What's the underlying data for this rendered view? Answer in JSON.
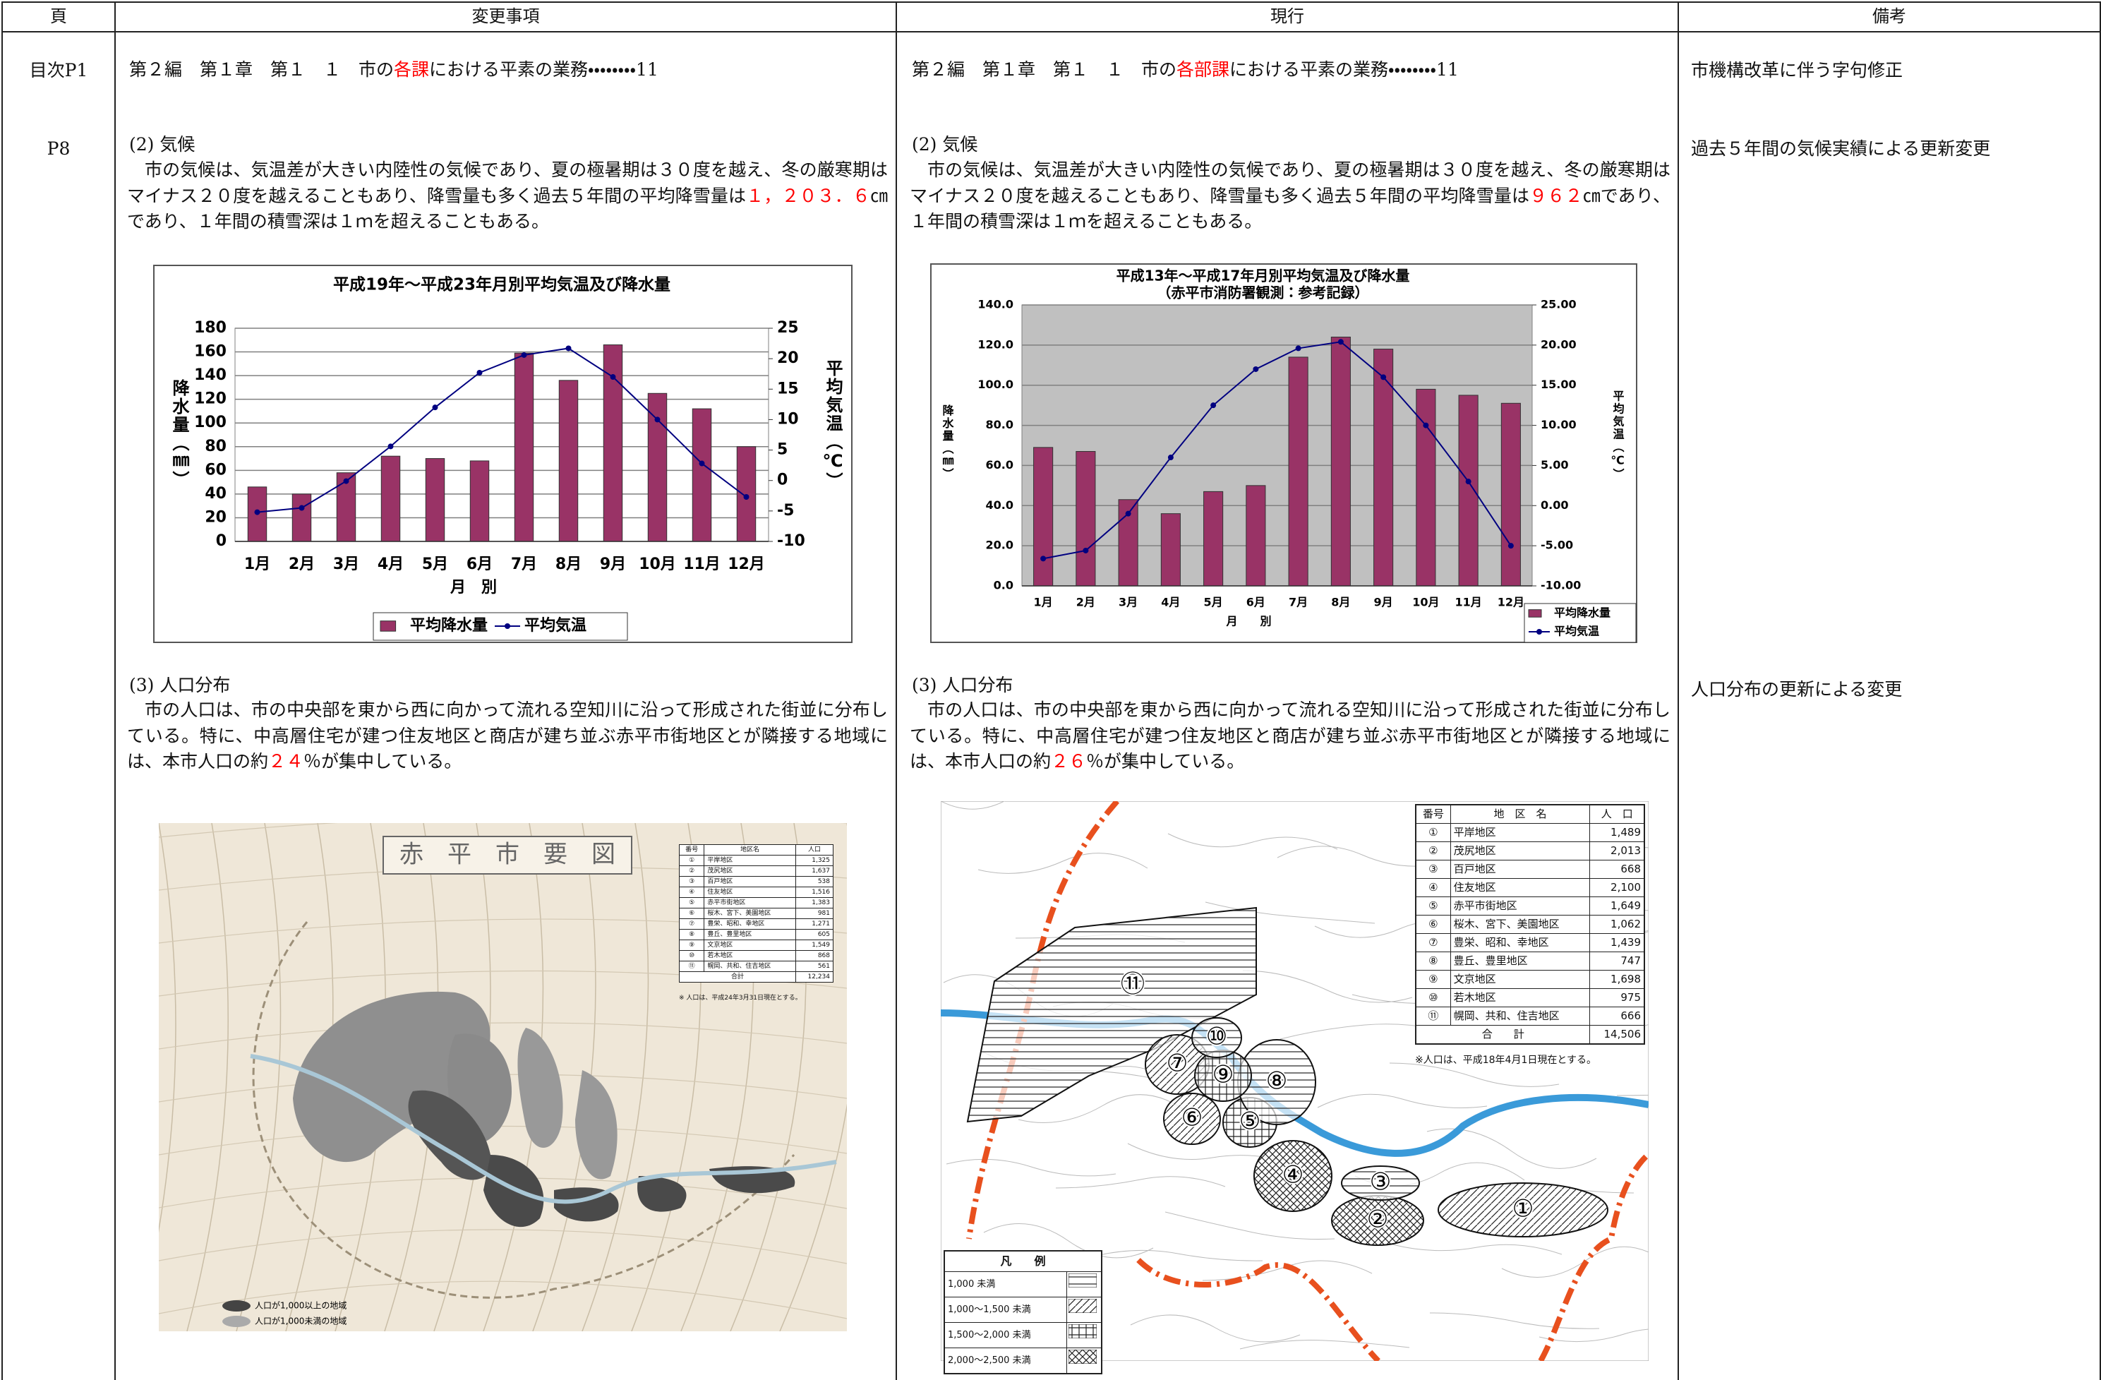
{
  "headers": [
    "頁",
    "変更事項",
    "現行",
    "備考"
  ],
  "toc": {
    "page": "目次P1",
    "change": [
      "第２編　第１章　第１　１　市の",
      {
        "text": "各課",
        "color": "#ff0000"
      },
      "における平素の業務・・・・・・・・11"
    ],
    "current": [
      "第２編　第１章　第１　１　市の",
      {
        "text": "各部課",
        "color": "#ff0000"
      },
      "における平素の業務・・・・・・・・11"
    ],
    "note": "市機構改革に伴う字句修正"
  },
  "p8": {
    "page": "P8",
    "climate": {
      "heading": "(2) 気候",
      "change": [
        "市の気候は、気温差が大きい内陸性の気候であり、夏の極暑期は３０度を越え、冬の厳寒期はマイナス２０度を越えることもあり、降雪量も多く過去５年間の平均降雪量は",
        {
          "text": "１，２０３．６",
          "color": "#ff0000"
        },
        "㎝であり、１年間の積雪深は１ｍを超えることもある。"
      ],
      "current": [
        "市の気候は、気温差が大きい内陸性の気候であり、夏の極暑期は３０度を越え、冬の厳寒期はマイナス２０度を越えることもあり、降雪量も多く過去５年間の平均降雪量は",
        {
          "text": "９６２",
          "color": "#ff0000"
        },
        "㎝であり、１年間の積雪深は１ｍを超えることもある。"
      ],
      "note": "過去５年間の気候実績による更新変更"
    },
    "population": {
      "heading": "(3) 人口分布",
      "change": [
        "市の人口は、市の中央部を東から西に向かって流れる空知川に沿って形成された街並に分布している。特に、中高層住宅が建つ住友地区と商店が建ち並ぶ赤平市街地区とが隣接する地域には、本市人口の約",
        {
          "text": "２４",
          "color": "#ff0000"
        },
        "％が集中している。"
      ],
      "current": [
        "市の人口は、市の中央部を東から西に向かって流れる空知川に沿って形成された街並に分布している。特に、中高層住宅が建つ住友地区と商店が建ち並ぶ赤平市街地区とが隣接する地域には、本市人口の約",
        {
          "text": "２６",
          "color": "#ff0000"
        },
        "％が集中している。"
      ],
      "note": "人口分布の更新による変更"
    }
  },
  "chart_data": [
    {
      "type": "bar-line",
      "title": "平成19年～平成23年月別平均気温及び降水量",
      "categories": [
        "1月",
        "2月",
        "3月",
        "4月",
        "5月",
        "6月",
        "7月",
        "8月",
        "9月",
        "10月",
        "11月",
        "12月"
      ],
      "xlabel": "月　別",
      "ylabel": "降水量（㎜）",
      "y2label": "平均気温（℃）",
      "series": [
        {
          "name": "平均降水量",
          "type": "bar",
          "color": "#993366",
          "values": [
            46,
            40,
            58,
            72,
            70,
            68,
            159,
            136,
            166,
            125,
            112,
            80
          ]
        },
        {
          "name": "平均気温",
          "type": "line",
          "axis": "y2",
          "color": "#000080",
          "values": [
            -5.2,
            -4.5,
            -0.1,
            5.6,
            12,
            17.7,
            20.6,
            21.7,
            17,
            10,
            2.8,
            -2.7
          ]
        }
      ],
      "ylim": [
        0,
        180
      ],
      "yticks": [
        0,
        20,
        40,
        60,
        80,
        100,
        120,
        140,
        160,
        180
      ],
      "y2lim": [
        -10,
        25
      ],
      "y2ticks": [
        -10,
        -5,
        0,
        5,
        10,
        15,
        20,
        25
      ],
      "grid": true,
      "plot_color": "#ffffff",
      "legend": "bottom"
    },
    {
      "type": "bar-line",
      "title": "平成13年～平成17年月別平均気温及び降水量",
      "subtitle": "（赤平市消防署観測：参考記録）",
      "categories": [
        "1月",
        "2月",
        "3月",
        "4月",
        "5月",
        "6月",
        "7月",
        "8月",
        "9月",
        "10月",
        "11月",
        "12月"
      ],
      "xlabel": "月　　別",
      "ylabel": "降水量（㎜）",
      "y2label": "平均気温（℃）",
      "series": [
        {
          "name": "平均降水量",
          "type": "bar",
          "color": "#993366",
          "values": [
            69,
            67,
            43,
            36,
            47,
            50,
            114,
            124,
            118,
            98,
            95,
            91
          ]
        },
        {
          "name": "平均気温",
          "type": "line",
          "axis": "y2",
          "color": "#000080",
          "values": [
            -6.6,
            -5.6,
            -1,
            6,
            12.5,
            17,
            19.6,
            20.4,
            16,
            10,
            3,
            -5
          ]
        }
      ],
      "ylim": [
        0,
        140
      ],
      "yticks": [
        {
          "value": 0,
          "label": "0.0"
        },
        {
          "value": 20,
          "label": "20.0"
        },
        {
          "value": 40,
          "label": "40.0"
        },
        {
          "value": 60,
          "label": "60.0"
        },
        {
          "value": 80,
          "label": "80.0"
        },
        {
          "value": 100,
          "label": "100.0"
        },
        {
          "value": 120,
          "label": "120.0"
        },
        {
          "value": 140,
          "label": "140.0"
        }
      ],
      "y2lim": [
        -10,
        25
      ],
      "y2ticks": [
        {
          "value": -10,
          "label": "-10.00"
        },
        {
          "value": -5,
          "label": "-5.00"
        },
        {
          "value": 0,
          "label": "0.00"
        },
        {
          "value": 5,
          "label": "5.00"
        },
        {
          "value": 10,
          "label": "10.00"
        },
        {
          "value": 15,
          "label": "15.00"
        },
        {
          "value": 20,
          "label": "20.00"
        },
        {
          "value": 25,
          "label": "25.00"
        }
      ],
      "grid": true,
      "plot_color": "#c0c0c0",
      "legend": "bottom-right"
    }
  ],
  "maps": [
    {
      "title": "赤　平　市　要　図",
      "table": {
        "headers": [
          "番号",
          "地区名",
          "人口"
        ],
        "rows": [
          [
            "①",
            "平岸地区",
            "1,325"
          ],
          [
            "②",
            "茂尻地区",
            "1,637"
          ],
          [
            "③",
            "百戸地区",
            "538"
          ],
          [
            "④",
            "住友地区",
            "1,516"
          ],
          [
            "⑤",
            "赤平市街地区",
            "1,383"
          ],
          [
            "⑥",
            "桜木、宮下、美園地区",
            "981"
          ],
          [
            "⑦",
            "豊栄、昭和、幸地区",
            "1,271"
          ],
          [
            "⑧",
            "豊丘、豊里地区",
            "605"
          ],
          [
            "⑨",
            "文京地区",
            "1,549"
          ],
          [
            "⑩",
            "若木地区",
            "868"
          ],
          [
            "⑪",
            "幌岡、共和、住吉地区",
            "561"
          ]
        ],
        "total": [
          "合計",
          "12,234"
        ]
      },
      "note": "※ 人口は、平成24年3月31日現在とする。",
      "legend": [
        "人口が1,000以上の地域",
        "人口が1,000未満の地域"
      ]
    },
    {
      "table": {
        "headers": [
          "番号",
          "地　区　名",
          "人　口"
        ],
        "rows": [
          [
            "①",
            "平岸地区",
            "1,489"
          ],
          [
            "②",
            "茂尻地区",
            "2,013"
          ],
          [
            "③",
            "百戸地区",
            "668"
          ],
          [
            "④",
            "住友地区",
            "2,100"
          ],
          [
            "⑤",
            "赤平市街地区",
            "1,649"
          ],
          [
            "⑥",
            "桜木、宮下、美園地区",
            "1,062"
          ],
          [
            "⑦",
            "豊栄、昭和、幸地区",
            "1,439"
          ],
          [
            "⑧",
            "豊丘、豊里地区",
            "747"
          ],
          [
            "⑨",
            "文京地区",
            "1,698"
          ],
          [
            "⑩",
            "若木地区",
            "975"
          ],
          [
            "⑪",
            "幌岡、共和、住吉地区",
            "666"
          ]
        ],
        "total": [
          "合　　計",
          "14,506"
        ]
      },
      "note": "※人口は、平成18年4月1日現在とする。",
      "legend_title": "凡　　例",
      "legend": [
        "1,000 未満",
        "1,000～1,500 未満",
        "1,500～2,000 未満",
        "2,000～2,500 未満"
      ]
    }
  ]
}
